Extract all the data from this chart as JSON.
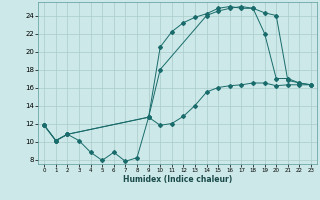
{
  "xlabel": "Humidex (Indice chaleur)",
  "bg_color": "#cce8e8",
  "grid_color": "#aacccc",
  "line_color": "#1a6b6b",
  "xlim": [
    -0.5,
    23.5
  ],
  "ylim": [
    7.5,
    25.5
  ],
  "xticks": [
    0,
    1,
    2,
    3,
    4,
    5,
    6,
    7,
    8,
    9,
    10,
    11,
    12,
    13,
    14,
    15,
    16,
    17,
    18,
    19,
    20,
    21,
    22,
    23
  ],
  "yticks": [
    8,
    10,
    12,
    14,
    16,
    18,
    20,
    22,
    24
  ],
  "line1_x": [
    0,
    1,
    2,
    3,
    4,
    5,
    6,
    7,
    8,
    9,
    10,
    11,
    12,
    13,
    14,
    15,
    16,
    17,
    18,
    19,
    20,
    21,
    22,
    23
  ],
  "line1_y": [
    11.8,
    10.1,
    10.8,
    10.1,
    8.8,
    7.9,
    8.8,
    7.8,
    8.2,
    12.7,
    11.8,
    12.0,
    12.8,
    14.0,
    15.5,
    16.0,
    16.2,
    16.3,
    16.5,
    16.5,
    16.2,
    16.3,
    16.3,
    16.3
  ],
  "line2_x": [
    0,
    1,
    2,
    9,
    10,
    11,
    12,
    13,
    14,
    15,
    16,
    17,
    18,
    19,
    20,
    21,
    22,
    23
  ],
  "line2_y": [
    11.8,
    10.1,
    10.8,
    12.7,
    20.5,
    22.2,
    23.2,
    23.8,
    24.2,
    24.8,
    25.0,
    24.8,
    24.8,
    22.0,
    17.0,
    17.0,
    16.5,
    16.3
  ],
  "line3_x": [
    0,
    1,
    2,
    9,
    10,
    14,
    15,
    16,
    17,
    18,
    19,
    20,
    21,
    22,
    23
  ],
  "line3_y": [
    11.8,
    10.1,
    10.8,
    12.7,
    18.0,
    24.0,
    24.5,
    24.8,
    25.0,
    24.8,
    24.3,
    24.0,
    16.8,
    16.5,
    16.3
  ]
}
